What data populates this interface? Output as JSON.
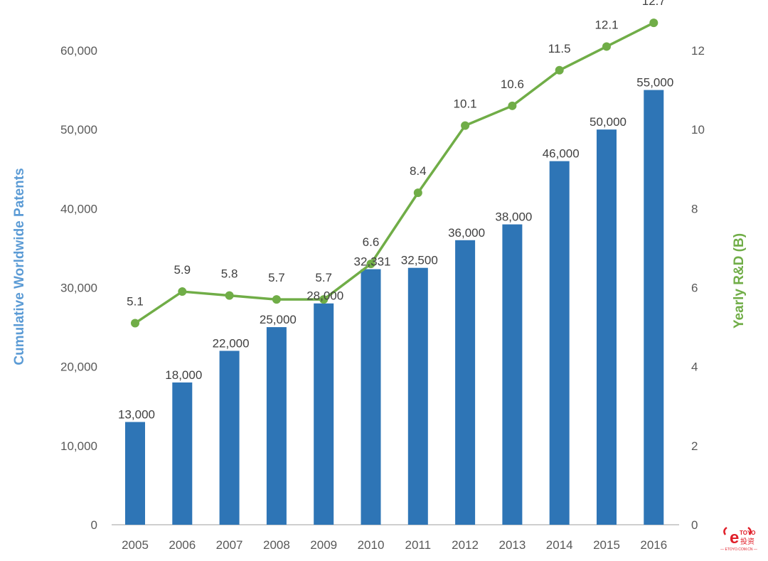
{
  "chart_data": {
    "type": "bar",
    "title": "",
    "categories": [
      "2005",
      "2006",
      "2007",
      "2008",
      "2009",
      "2010",
      "2011",
      "2012",
      "2013",
      "2014",
      "2015",
      "2016"
    ],
    "series": [
      {
        "name": "Cumulative Worldwide Patents",
        "type": "bar",
        "axis": "left",
        "color": "#2e75b6",
        "values": [
          13000,
          18000,
          22000,
          25000,
          28000,
          32331,
          32500,
          36000,
          38000,
          46000,
          50000,
          55000
        ],
        "labels": [
          "13,000",
          "18,000",
          "22,000",
          "25,000",
          "28,000",
          "32,331",
          "32,500",
          "36,000",
          "38,000",
          "46,000",
          "50,000",
          "55,000"
        ]
      },
      {
        "name": "Yearly R&D (B)",
        "type": "line",
        "axis": "right",
        "color": "#70ad47",
        "values": [
          5.1,
          5.9,
          5.8,
          5.7,
          5.7,
          6.6,
          8.4,
          10.1,
          10.6,
          11.5,
          12.1,
          12.7
        ],
        "labels": [
          "5.1",
          "5.9",
          "5.8",
          "5.7",
          "5.7",
          "6.6",
          "8.4",
          "10.1",
          "10.6",
          "11.5",
          "12.1",
          "12.7"
        ]
      }
    ],
    "ylabel_left": "Cumulative Worldwide Patents",
    "ylabel_right": "Yearly R&D (B)",
    "ylim_left": [
      0,
      60000
    ],
    "ylim_right": [
      0,
      12
    ],
    "yticks_left": [
      "0",
      "10,000",
      "20,000",
      "30,000",
      "40,000",
      "50,000",
      "60,000"
    ],
    "yticks_right": [
      "0",
      "2",
      "4",
      "6",
      "8",
      "10",
      "12"
    ],
    "grid": false,
    "legend": "none"
  },
  "watermark": {
    "letter": "e",
    "brand": "TOYO",
    "chinese": "投资",
    "url": "— ETOYO.COM.CN —",
    "color": "#e0202a"
  }
}
